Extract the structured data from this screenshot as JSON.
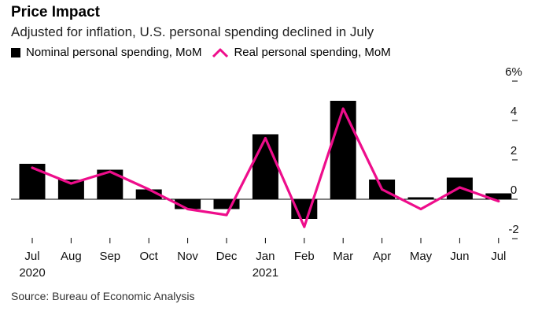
{
  "chart_data": {
    "type": "bar+line",
    "title": "Price Impact",
    "subtitle": "Adjusted for inflation, U.S. personal spending declined in July",
    "source": "Source: Bureau of Economic Analysis",
    "categories": [
      "Jul",
      "Aug",
      "Sep",
      "Oct",
      "Nov",
      "Dec",
      "Jan",
      "Feb",
      "Mar",
      "Apr",
      "May",
      "Jun",
      "Jul"
    ],
    "year_labels": [
      {
        "index": 0,
        "label": "2020"
      },
      {
        "index": 6,
        "label": "2021"
      }
    ],
    "series": [
      {
        "name": "Nominal personal spending, MoM",
        "kind": "bar",
        "color": "#000000",
        "values": [
          1.8,
          1.0,
          1.5,
          0.5,
          -0.5,
          -0.5,
          3.3,
          -1.0,
          5.0,
          1.0,
          0.1,
          1.1,
          0.3
        ]
      },
      {
        "name": "Real personal spending, MoM",
        "kind": "line",
        "color": "#ee0d8b",
        "values": [
          1.6,
          0.8,
          1.4,
          0.5,
          -0.5,
          -0.8,
          3.1,
          -1.4,
          4.6,
          0.5,
          -0.5,
          0.6,
          -0.1
        ]
      }
    ],
    "yticks": [
      6,
      4,
      2,
      0,
      -2
    ],
    "ytick_labels": [
      "6%",
      "4",
      "2",
      "0",
      "-2"
    ],
    "ylim": [
      -2,
      6
    ],
    "y_axis_position": "right",
    "grid": false,
    "legend_position": "top-left"
  }
}
